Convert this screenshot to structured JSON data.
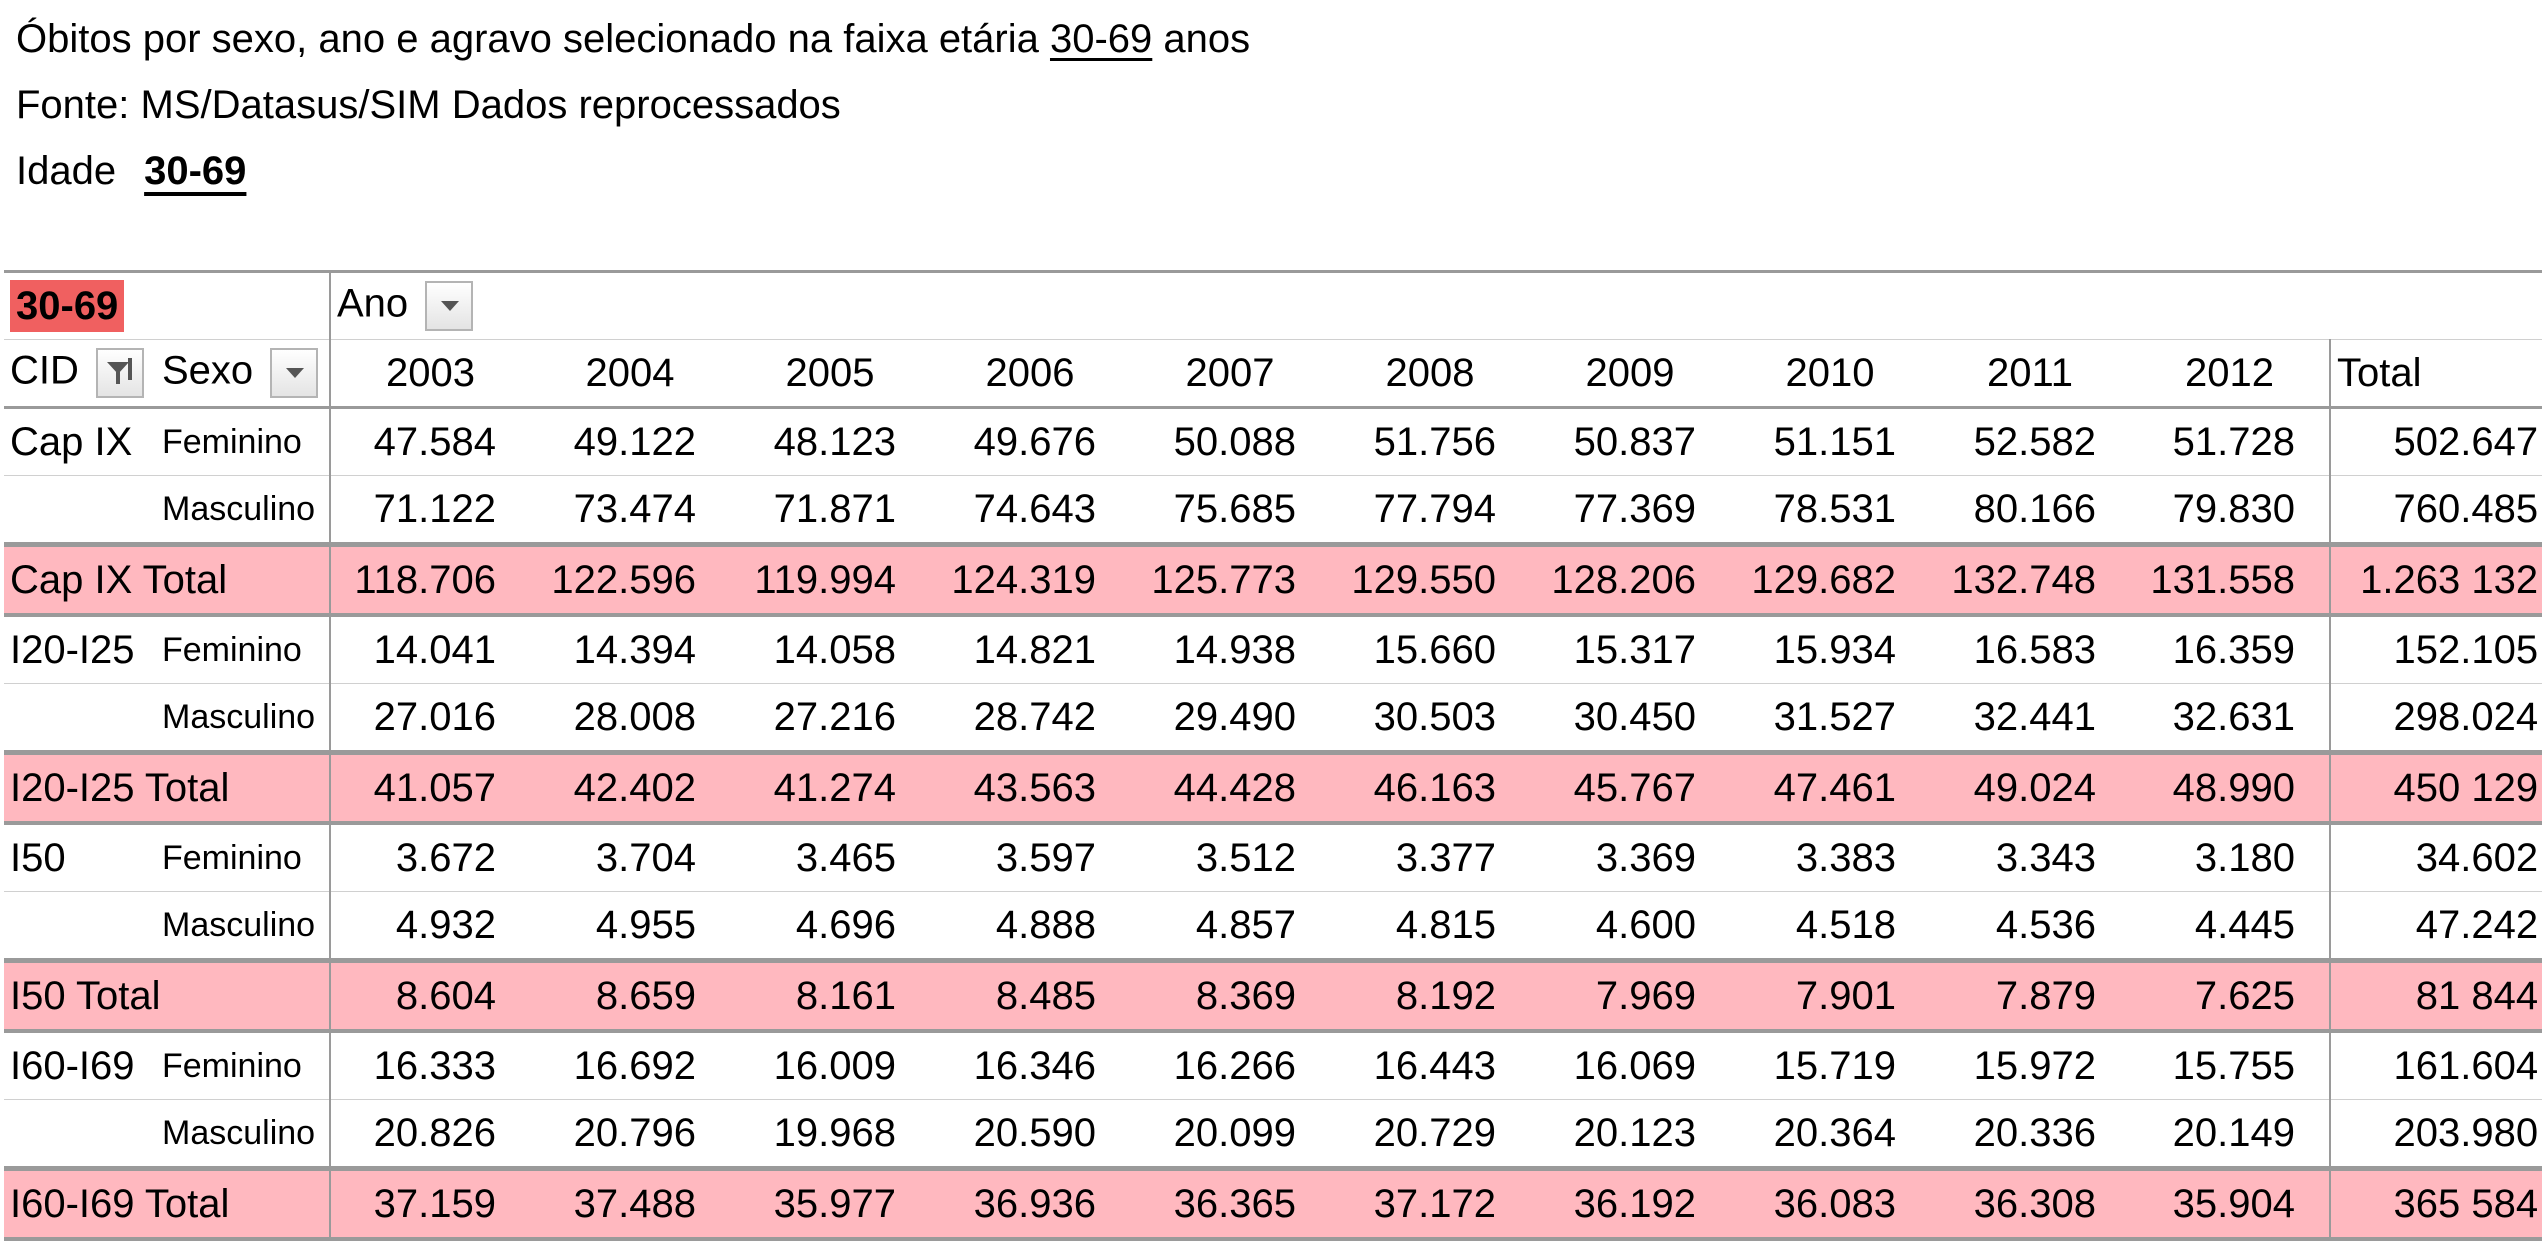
{
  "header": {
    "line1_pre": "Óbitos por sexo, ano e agravo selecionado na faixa etária ",
    "line1_link": "30-69",
    "line1_post": " anos",
    "line2": "Fonte: MS/Datasus/SIM Dados reprocessados",
    "line3_label": "Idade",
    "line3_value": "30-69"
  },
  "pivot": {
    "page_filter": "30-69",
    "column_field": "Ano",
    "row_field_1": "CID",
    "row_field_2": "Sexo",
    "years": [
      "2003",
      "2004",
      "2005",
      "2006",
      "2007",
      "2008",
      "2009",
      "2010",
      "2011",
      "2012"
    ],
    "total_label": "Total",
    "groups": [
      {
        "label": "Cap IX",
        "rows": [
          {
            "sexo": "Feminino",
            "values": [
              "47.584",
              "49.122",
              "48.123",
              "49.676",
              "50.088",
              "51.756",
              "50.837",
              "51.151",
              "52.582",
              "51.728"
            ],
            "total": "502.647"
          },
          {
            "sexo": "Masculino",
            "values": [
              "71.122",
              "73.474",
              "71.871",
              "74.643",
              "75.685",
              "77.794",
              "77.369",
              "78.531",
              "80.166",
              "79.830"
            ],
            "total": "760.485"
          }
        ],
        "total_label": "Cap IX Total",
        "totals": [
          "118.706",
          "122.596",
          "119.994",
          "124.319",
          "125.773",
          "129.550",
          "128.206",
          "129.682",
          "132.748",
          "131.558"
        ],
        "grand": "1.263 132"
      },
      {
        "label": "I20-I25",
        "rows": [
          {
            "sexo": "Feminino",
            "values": [
              "14.041",
              "14.394",
              "14.058",
              "14.821",
              "14.938",
              "15.660",
              "15.317",
              "15.934",
              "16.583",
              "16.359"
            ],
            "total": "152.105"
          },
          {
            "sexo": "Masculino",
            "values": [
              "27.016",
              "28.008",
              "27.216",
              "28.742",
              "29.490",
              "30.503",
              "30.450",
              "31.527",
              "32.441",
              "32.631"
            ],
            "total": "298.024"
          }
        ],
        "total_label": "I20-I25 Total",
        "totals": [
          "41.057",
          "42.402",
          "41.274",
          "43.563",
          "44.428",
          "46.163",
          "45.767",
          "47.461",
          "49.024",
          "48.990"
        ],
        "grand": "450 129"
      },
      {
        "label": "I50",
        "rows": [
          {
            "sexo": "Feminino",
            "values": [
              "3.672",
              "3.704",
              "3.465",
              "3.597",
              "3.512",
              "3.377",
              "3.369",
              "3.383",
              "3.343",
              "3.180"
            ],
            "total": "34.602"
          },
          {
            "sexo": "Masculino",
            "values": [
              "4.932",
              "4.955",
              "4.696",
              "4.888",
              "4.857",
              "4.815",
              "4.600",
              "4.518",
              "4.536",
              "4.445"
            ],
            "total": "47.242"
          }
        ],
        "total_label": "I50 Total",
        "totals": [
          "8.604",
          "8.659",
          "8.161",
          "8.485",
          "8.369",
          "8.192",
          "7.969",
          "7.901",
          "7.879",
          "7.625"
        ],
        "grand": "81 844"
      },
      {
        "label": "I60-I69",
        "rows": [
          {
            "sexo": "Feminino",
            "values": [
              "16.333",
              "16.692",
              "16.009",
              "16.346",
              "16.266",
              "16.443",
              "16.069",
              "15.719",
              "15.972",
              "15.755"
            ],
            "total": "161.604"
          },
          {
            "sexo": "Masculino",
            "values": [
              "20.826",
              "20.796",
              "19.968",
              "20.590",
              "20.099",
              "20.729",
              "20.123",
              "20.364",
              "20.336",
              "20.149"
            ],
            "total": "203.980"
          }
        ],
        "total_label": "I60-I69 Total",
        "totals": [
          "37.159",
          "37.488",
          "35.977",
          "36.936",
          "36.365",
          "37.172",
          "36.192",
          "36.083",
          "36.308",
          "35.904"
        ],
        "grand": "365 584"
      }
    ]
  },
  "colors": {
    "filter_badge": "#f06060",
    "total_row": "#ffb8bf",
    "grid": "#9a9a9a"
  }
}
